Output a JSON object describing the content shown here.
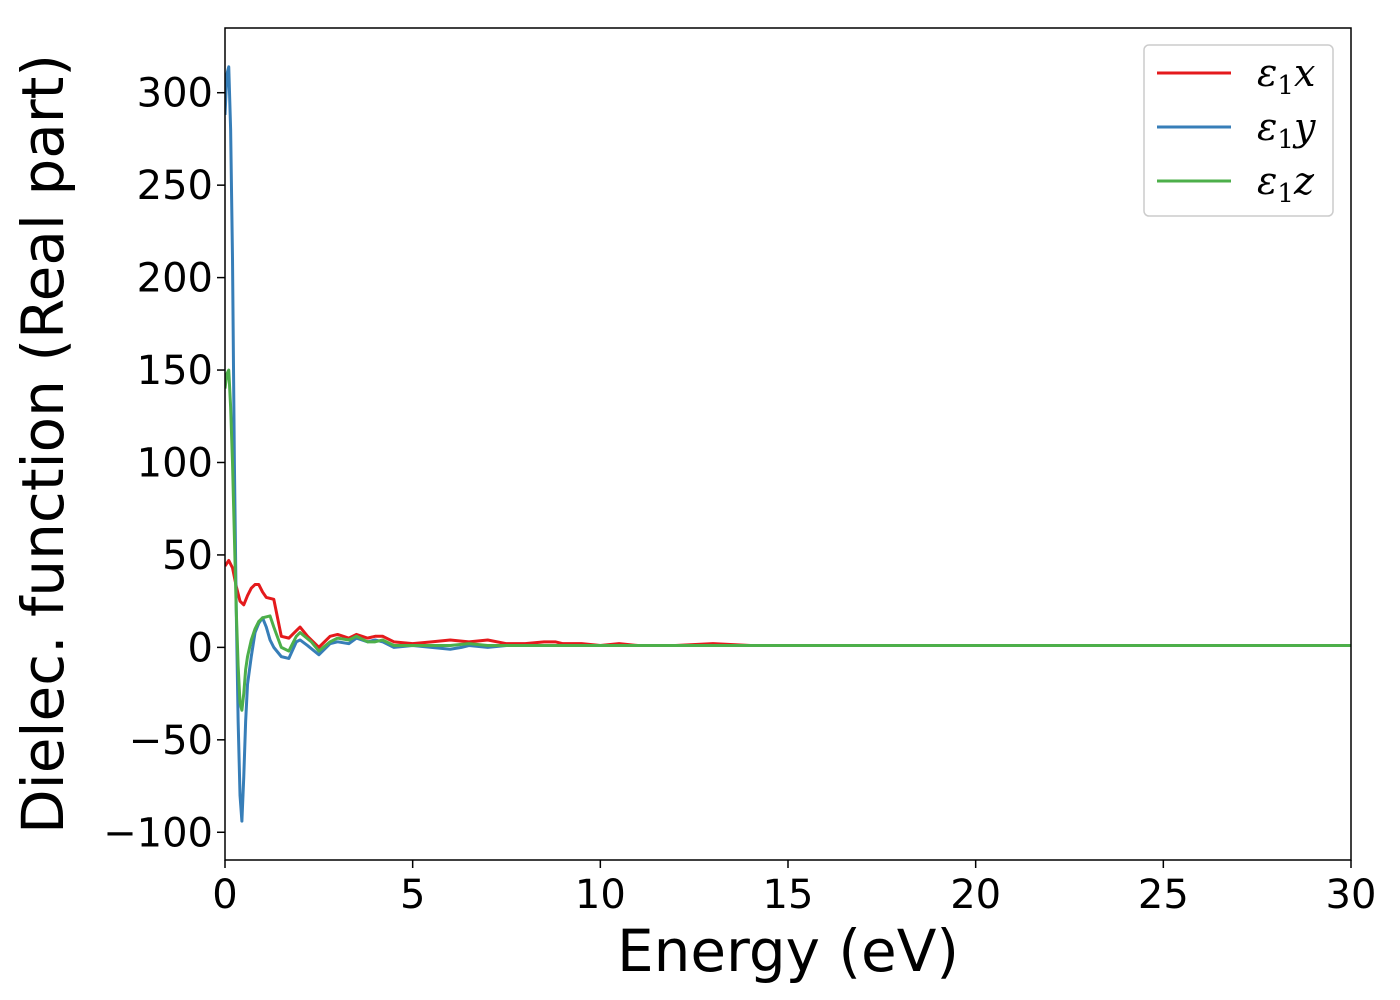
{
  "chart_data": {
    "type": "line",
    "title": "",
    "xlabel": "Energy (eV)",
    "ylabel": "Dielec. function (Real part)",
    "xlim": [
      0,
      30
    ],
    "ylim": [
      -115,
      335
    ],
    "xticks": [
      0,
      5,
      10,
      15,
      20,
      25,
      30
    ],
    "yticks": [
      -100,
      -50,
      0,
      50,
      100,
      150,
      200,
      250,
      300
    ],
    "grid": false,
    "legend_position": "top-right",
    "series": [
      {
        "name": "ε₁x",
        "legend_base": "ε",
        "legend_sub": "1",
        "legend_var": "x",
        "color": "#e41a1c",
        "points": [
          [
            0,
            44
          ],
          [
            0.1,
            47
          ],
          [
            0.2,
            43
          ],
          [
            0.3,
            33
          ],
          [
            0.4,
            25
          ],
          [
            0.5,
            23
          ],
          [
            0.6,
            28
          ],
          [
            0.7,
            32
          ],
          [
            0.8,
            34
          ],
          [
            0.9,
            34
          ],
          [
            1.0,
            30
          ],
          [
            1.1,
            27
          ],
          [
            1.3,
            26
          ],
          [
            1.5,
            6
          ],
          [
            1.7,
            5
          ],
          [
            1.9,
            9
          ],
          [
            2.0,
            11
          ],
          [
            2.2,
            6
          ],
          [
            2.5,
            0
          ],
          [
            2.8,
            6
          ],
          [
            3.0,
            7
          ],
          [
            3.3,
            5
          ],
          [
            3.5,
            7
          ],
          [
            3.8,
            5
          ],
          [
            4.0,
            6
          ],
          [
            4.2,
            6
          ],
          [
            4.5,
            3
          ],
          [
            5.0,
            2
          ],
          [
            5.5,
            3
          ],
          [
            6.0,
            4
          ],
          [
            6.5,
            3
          ],
          [
            7.0,
            4
          ],
          [
            7.5,
            2
          ],
          [
            8.0,
            2
          ],
          [
            8.5,
            3
          ],
          [
            8.8,
            3
          ],
          [
            9.0,
            2
          ],
          [
            9.5,
            2
          ],
          [
            10.0,
            1
          ],
          [
            10.5,
            2
          ],
          [
            11.0,
            1
          ],
          [
            12.0,
            1
          ],
          [
            13.0,
            2
          ],
          [
            14.0,
            1
          ],
          [
            15.0,
            1
          ],
          [
            16.0,
            1
          ],
          [
            17.0,
            1
          ],
          [
            18.0,
            1
          ],
          [
            19.0,
            1
          ],
          [
            20.0,
            1
          ],
          [
            22.0,
            1
          ],
          [
            24.0,
            1
          ],
          [
            26.0,
            1
          ],
          [
            28.0,
            1
          ],
          [
            30.0,
            1
          ]
        ]
      },
      {
        "name": "ε₁y",
        "legend_base": "ε",
        "legend_sub": "1",
        "legend_var": "y",
        "color": "#377eb8",
        "points": [
          [
            0,
            288
          ],
          [
            0.05,
            310
          ],
          [
            0.1,
            314
          ],
          [
            0.15,
            280
          ],
          [
            0.2,
            210
          ],
          [
            0.25,
            100
          ],
          [
            0.3,
            20
          ],
          [
            0.35,
            -40
          ],
          [
            0.4,
            -80
          ],
          [
            0.45,
            -94
          ],
          [
            0.5,
            -70
          ],
          [
            0.55,
            -40
          ],
          [
            0.6,
            -20
          ],
          [
            0.7,
            -5
          ],
          [
            0.8,
            8
          ],
          [
            0.9,
            13
          ],
          [
            1.0,
            16
          ],
          [
            1.1,
            11
          ],
          [
            1.2,
            4
          ],
          [
            1.3,
            0
          ],
          [
            1.5,
            -5
          ],
          [
            1.7,
            -6
          ],
          [
            1.9,
            3
          ],
          [
            2.0,
            4
          ],
          [
            2.2,
            1
          ],
          [
            2.5,
            -4
          ],
          [
            2.8,
            2
          ],
          [
            3.0,
            3
          ],
          [
            3.3,
            2
          ],
          [
            3.5,
            5
          ],
          [
            3.8,
            3
          ],
          [
            4.0,
            4
          ],
          [
            4.2,
            3
          ],
          [
            4.5,
            0
          ],
          [
            5.0,
            1
          ],
          [
            5.5,
            0
          ],
          [
            6.0,
            -1
          ],
          [
            6.3,
            0
          ],
          [
            6.5,
            1
          ],
          [
            7.0,
            0
          ],
          [
            7.5,
            1
          ],
          [
            8.0,
            1
          ],
          [
            8.5,
            1
          ],
          [
            9.0,
            1
          ],
          [
            9.5,
            1
          ],
          [
            10.0,
            1
          ],
          [
            11.0,
            1
          ],
          [
            12.0,
            1
          ],
          [
            13.0,
            1
          ],
          [
            14.0,
            1
          ],
          [
            15.0,
            1
          ],
          [
            16.0,
            1
          ],
          [
            17.0,
            1
          ],
          [
            18.0,
            1
          ],
          [
            19.0,
            1
          ],
          [
            20.0,
            1
          ],
          [
            22.0,
            1
          ],
          [
            24.0,
            1
          ],
          [
            26.0,
            1
          ],
          [
            28.0,
            1
          ],
          [
            30.0,
            1
          ]
        ]
      },
      {
        "name": "ε₁z",
        "legend_base": "ε",
        "legend_sub": "1",
        "legend_var": "z",
        "color": "#4daf4a",
        "points": [
          [
            0,
            140
          ],
          [
            0.05,
            148
          ],
          [
            0.1,
            150
          ],
          [
            0.15,
            130
          ],
          [
            0.2,
            100
          ],
          [
            0.25,
            60
          ],
          [
            0.3,
            20
          ],
          [
            0.35,
            -10
          ],
          [
            0.4,
            -30
          ],
          [
            0.45,
            -34
          ],
          [
            0.5,
            -25
          ],
          [
            0.55,
            -12
          ],
          [
            0.6,
            -5
          ],
          [
            0.7,
            4
          ],
          [
            0.8,
            10
          ],
          [
            0.9,
            14
          ],
          [
            1.0,
            16
          ],
          [
            1.2,
            17
          ],
          [
            1.3,
            11
          ],
          [
            1.5,
            0
          ],
          [
            1.7,
            -2
          ],
          [
            1.9,
            6
          ],
          [
            2.0,
            8
          ],
          [
            2.3,
            3
          ],
          [
            2.5,
            -2
          ],
          [
            2.8,
            3
          ],
          [
            3.0,
            5
          ],
          [
            3.3,
            4
          ],
          [
            3.5,
            6
          ],
          [
            3.8,
            3
          ],
          [
            4.0,
            3
          ],
          [
            4.2,
            4
          ],
          [
            4.5,
            1
          ],
          [
            5.0,
            1
          ],
          [
            5.5,
            1
          ],
          [
            6.0,
            1
          ],
          [
            6.5,
            2
          ],
          [
            7.0,
            1
          ],
          [
            7.5,
            1
          ],
          [
            8.0,
            1
          ],
          [
            9.0,
            1
          ],
          [
            10.0,
            1
          ],
          [
            12.0,
            1
          ],
          [
            14.0,
            1
          ],
          [
            16.0,
            1
          ],
          [
            18.0,
            1
          ],
          [
            20.0,
            1
          ],
          [
            22.0,
            1
          ],
          [
            24.0,
            1
          ],
          [
            26.0,
            1
          ],
          [
            28.0,
            1
          ],
          [
            30.0,
            1
          ]
        ]
      }
    ]
  }
}
